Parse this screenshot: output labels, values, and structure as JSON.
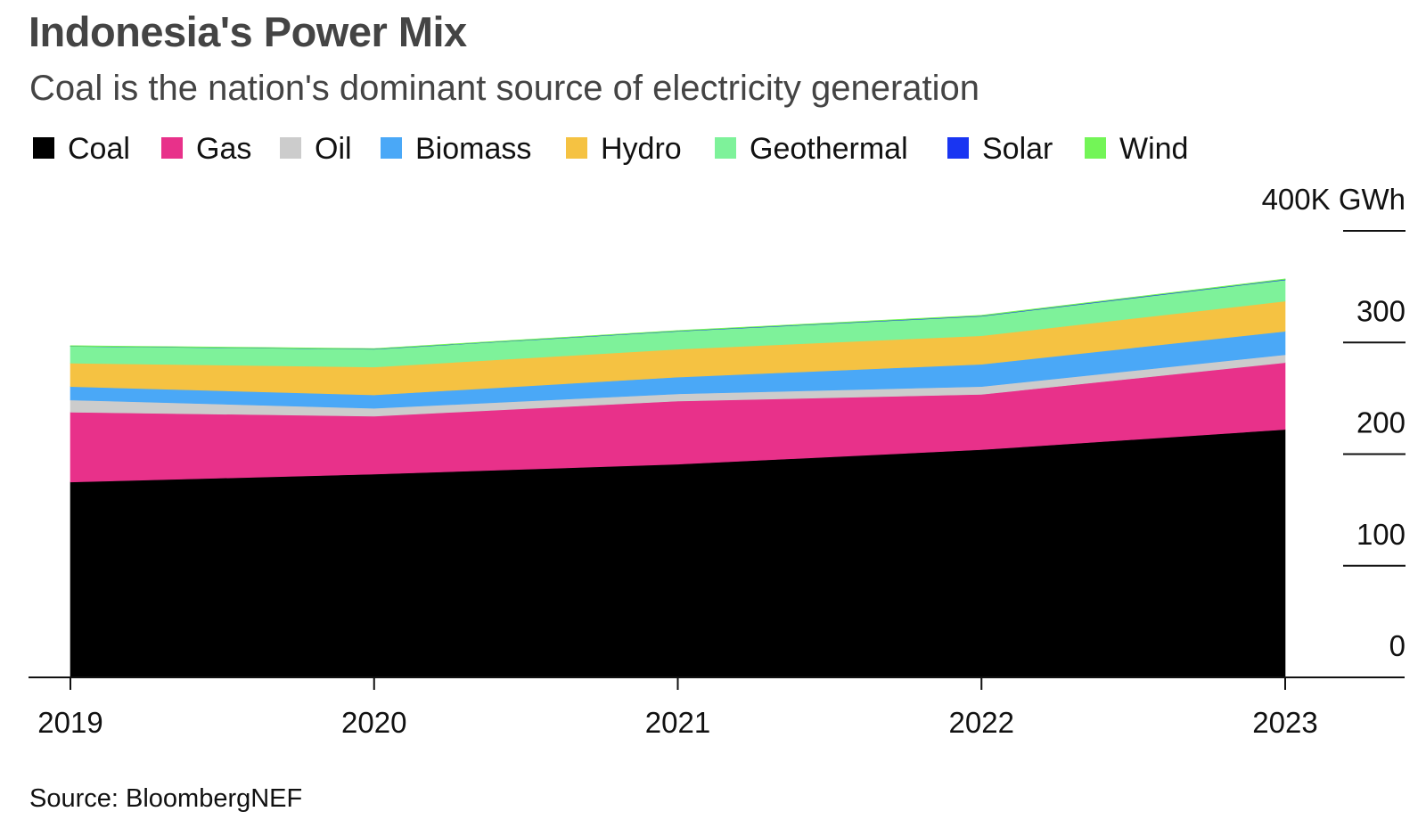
{
  "header": {
    "title": "Indonesia's Power Mix",
    "subtitle": "Coal is the nation's dominant source of electricity generation"
  },
  "source": "Source: BloombergNEF",
  "chart_data": {
    "type": "area",
    "stacked": true,
    "title": "Indonesia's Power Mix",
    "subtitle": "Coal is the nation's dominant source of electricity generation",
    "xlabel": "",
    "ylabel": "GWh",
    "unit_label": "400K GWh",
    "x": [
      "2019",
      "2020",
      "2021",
      "2022",
      "2023"
    ],
    "yticks": [
      0,
      100,
      200,
      300,
      400
    ],
    "ytick_labels": [
      "0",
      "100",
      "200",
      "300",
      "400K GWh"
    ],
    "ylim": [
      0,
      400
    ],
    "y_units": "thousand GWh",
    "grid": false,
    "legend_position": "top-left",
    "y_axis_side": "right",
    "series": [
      {
        "name": "Coal",
        "color": "#000000",
        "values": [
          175,
          182,
          191,
          204,
          222
        ]
      },
      {
        "name": "Gas",
        "color": "#e8318a",
        "values": [
          62.5,
          52,
          56.5,
          49.5,
          60
        ]
      },
      {
        "name": "Oil",
        "color": "#cccccc",
        "values": [
          11,
          7,
          6.5,
          7,
          7
        ]
      },
      {
        "name": "Biomass",
        "color": "#4aa8f7",
        "values": [
          12,
          12,
          15,
          20,
          21
        ]
      },
      {
        "name": "Hydro",
        "color": "#f5c242",
        "values": [
          21,
          25,
          25,
          25.5,
          27
        ]
      },
      {
        "name": "Geothermal",
        "color": "#7ef29a",
        "values": [
          15,
          16,
          16,
          17.5,
          19
        ]
      },
      {
        "name": "Solar",
        "color": "#1935f2",
        "values": [
          0.2,
          0.2,
          0.3,
          0.4,
          0.5
        ]
      },
      {
        "name": "Wind",
        "color": "#73f557",
        "values": [
          0.5,
          0.4,
          0.4,
          0.5,
          0.5
        ]
      }
    ],
    "source": "Source: BloombergNEF"
  }
}
